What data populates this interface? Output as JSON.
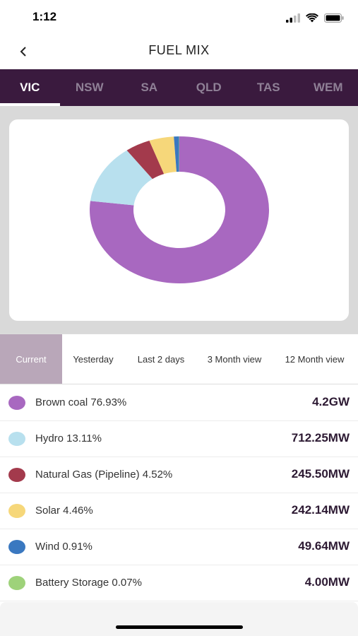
{
  "status_bar": {
    "time": "1:12"
  },
  "header": {
    "title": "FUEL MIX"
  },
  "regions": [
    {
      "label": "VIC",
      "active": true
    },
    {
      "label": "NSW",
      "active": false
    },
    {
      "label": "SA",
      "active": false
    },
    {
      "label": "QLD",
      "active": false
    },
    {
      "label": "TAS",
      "active": false
    },
    {
      "label": "WEM",
      "active": false
    }
  ],
  "periods": [
    {
      "label": "Current",
      "active": true
    },
    {
      "label": "Yesterday",
      "active": false
    },
    {
      "label": "Last 2 days",
      "active": false
    },
    {
      "label": "3 Month view",
      "active": false
    },
    {
      "label": "12 Month view",
      "active": false
    }
  ],
  "fuels": [
    {
      "label": "Brown coal 76.93%",
      "value": "4.2GW",
      "color": "#a868c0"
    },
    {
      "label": "Hydro 13.11%",
      "value": "712.25MW",
      "color": "#b8e0ee"
    },
    {
      "label": "Natural Gas (Pipeline) 4.52%",
      "value": "245.50MW",
      "color": "#a33a4c"
    },
    {
      "label": "Solar 4.46%",
      "value": "242.14MW",
      "color": "#f6d77a"
    },
    {
      "label": "Wind 0.91%",
      "value": "49.64MW",
      "color": "#3a78c0"
    },
    {
      "label": "Battery Storage 0.07%",
      "value": "4.00MW",
      "color": "#9ed27a"
    }
  ],
  "chart_data": {
    "type": "pie",
    "donut": true,
    "categories": [
      "Brown coal",
      "Hydro",
      "Natural Gas (Pipeline)",
      "Solar",
      "Wind",
      "Battery Storage"
    ],
    "values": [
      76.93,
      13.11,
      4.52,
      4.46,
      0.91,
      0.07
    ],
    "colors": [
      "#a868c0",
      "#b8e0ee",
      "#a33a4c",
      "#f6d77a",
      "#3a78c0",
      "#9ed27a"
    ],
    "title": "",
    "legend": "none"
  }
}
